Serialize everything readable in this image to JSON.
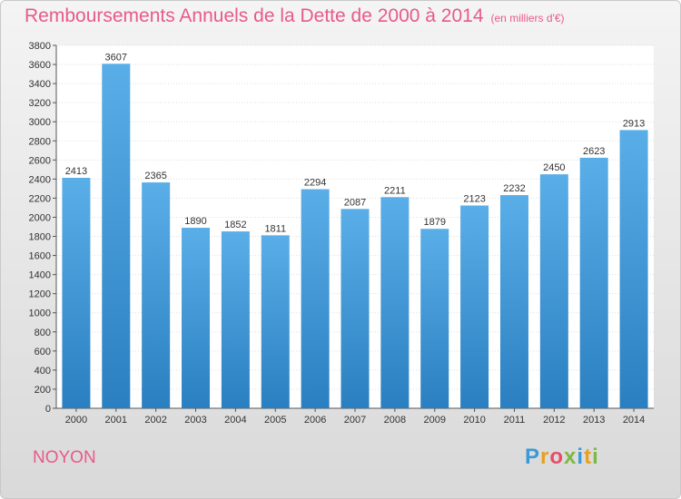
{
  "header": {
    "title": "Remboursements Annuels de la Dette de 2000 à 2014",
    "subtitle": "(en milliers d'€)"
  },
  "footer": {
    "city": "NOYON",
    "brand_letters": [
      "P",
      "r",
      "o",
      "x",
      "i",
      "t",
      "i"
    ],
    "brand_colors": [
      "#3a9ad9",
      "#e8a020",
      "#e84a6a",
      "#7cb842",
      "#3a9ad9",
      "#e8a020",
      "#7cb842"
    ]
  },
  "colors": {
    "title": "#e85a8a",
    "bar_top": "#5aaee8",
    "bar_bottom": "#2a7fc0"
  },
  "chart_data": {
    "type": "bar",
    "categories": [
      "2000",
      "2001",
      "2002",
      "2003",
      "2004",
      "2005",
      "2006",
      "2007",
      "2008",
      "2009",
      "2010",
      "2011",
      "2012",
      "2013",
      "2014"
    ],
    "values": [
      2413,
      3607,
      2365,
      1890,
      1852,
      1811,
      2294,
      2087,
      2211,
      1879,
      2123,
      2232,
      2450,
      2623,
      2913
    ],
    "ylim": [
      0,
      3800
    ],
    "ytick_step": 200,
    "grid": true,
    "data_labels": true
  }
}
